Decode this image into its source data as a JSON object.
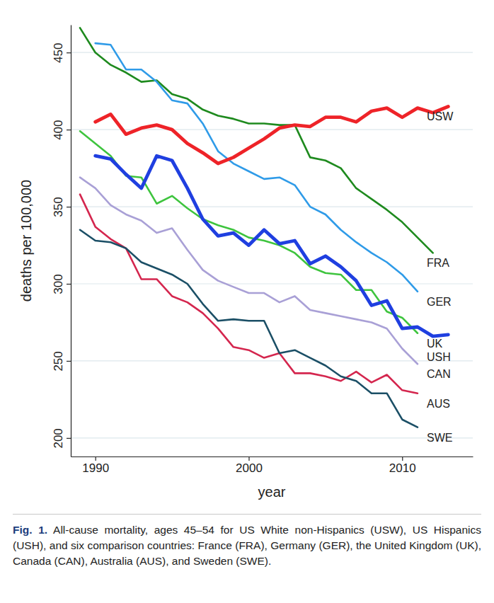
{
  "chart_data": {
    "type": "line",
    "x_label": "year",
    "y_label": "deaths per 100,000",
    "caption_label": "Fig. 1.",
    "caption": "All-cause mortality, ages 45–54 for US White non-Hispanics (USW), US Hispanics (USH), and six comparison countries: France (FRA), Germany (GER), the United Kingdom (UK), Canada (CAN), Australia (AUS), and Sweden (SWE).",
    "x": [
      1989,
      1990,
      1991,
      1992,
      1993,
      1994,
      1995,
      1996,
      1997,
      1998,
      1999,
      2000,
      2001,
      2002,
      2003,
      2004,
      2005,
      2006,
      2007,
      2008,
      2009,
      2010,
      2011,
      2012,
      2013
    ],
    "xlim": [
      1988.4,
      2014.6
    ],
    "xticks": [
      1990,
      2000,
      2010
    ],
    "ylim": [
      188,
      468
    ],
    "yticks": [
      200,
      250,
      300,
      350,
      400,
      450
    ],
    "grid": true,
    "series": [
      {
        "name": "USW",
        "color": "#ee2328",
        "values": [
          null,
          405,
          410,
          397,
          401,
          403,
          400,
          391,
          385,
          378,
          382,
          388,
          394,
          401,
          403,
          402,
          408,
          408,
          405,
          412,
          414,
          408,
          414,
          411,
          415
        ]
      },
      {
        "name": "USH",
        "color": "#1f3fe0",
        "values": [
          null,
          383,
          381,
          371,
          362,
          383,
          380,
          362,
          342,
          331,
          333,
          325,
          335,
          326,
          328,
          313,
          318,
          311,
          302,
          286,
          289,
          271,
          272,
          266,
          267
        ]
      },
      {
        "name": "FRA",
        "color": "#1e8a1e",
        "values": [
          466,
          450,
          442,
          437,
          431,
          432,
          423,
          420,
          413,
          409,
          407,
          404,
          404,
          403,
          403,
          382,
          380,
          375,
          362,
          355,
          348,
          340,
          330,
          320,
          null
        ]
      },
      {
        "name": "GER",
        "color": "#2f9be8",
        "values": [
          null,
          456,
          455,
          439,
          439,
          431,
          419,
          417,
          404,
          386,
          378,
          373,
          368,
          369,
          364,
          350,
          345,
          335,
          327,
          320,
          314,
          306,
          295,
          null,
          null
        ]
      },
      {
        "name": "UK",
        "color": "#3ec43e",
        "values": [
          399,
          391,
          383,
          370,
          369,
          352,
          357,
          349,
          342,
          338,
          335,
          330,
          328,
          325,
          320,
          311,
          307,
          306,
          296,
          296,
          282,
          278,
          268,
          null,
          null
        ]
      },
      {
        "name": "CAN",
        "color": "#a9a0d6",
        "values": [
          369,
          362,
          351,
          345,
          341,
          333,
          336,
          322,
          309,
          302,
          298,
          294,
          294,
          288,
          292,
          283,
          281,
          279,
          277,
          275,
          271,
          258,
          248,
          null,
          null
        ]
      },
      {
        "name": "AUS",
        "color": "#d4264e",
        "values": [
          358,
          337,
          329,
          323,
          303,
          303,
          292,
          288,
          281,
          271,
          259,
          257,
          252,
          255,
          242,
          242,
          240,
          237,
          243,
          236,
          241,
          231,
          229,
          null,
          null
        ]
      },
      {
        "name": "SWE",
        "color": "#1b4f66",
        "values": [
          335,
          328,
          327,
          323,
          314,
          310,
          306,
          300,
          287,
          276,
          277,
          276,
          276,
          255,
          257,
          252,
          247,
          240,
          237,
          229,
          229,
          212,
          207,
          null,
          null
        ]
      }
    ]
  }
}
